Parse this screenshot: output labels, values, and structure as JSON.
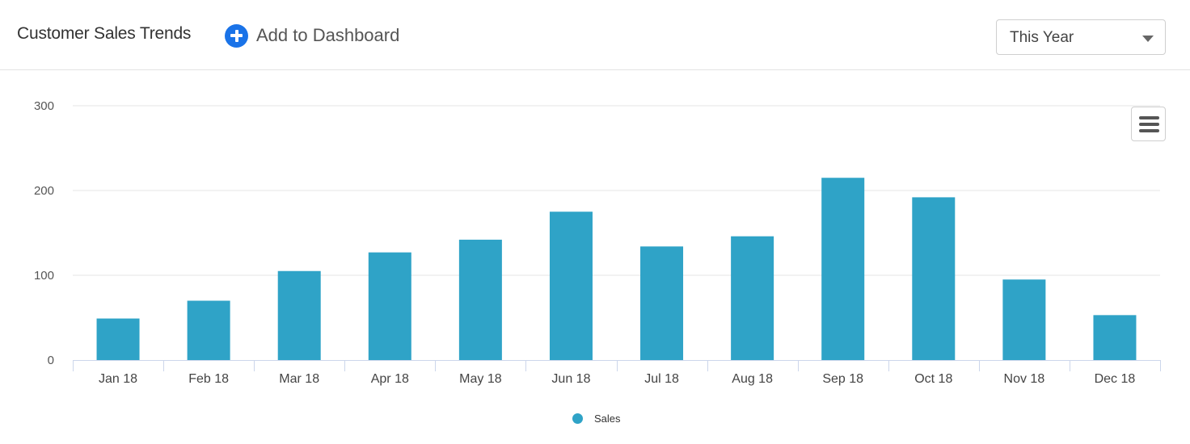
{
  "header": {
    "title": "Customer Sales Trends",
    "add_label": "Add to Dashboard"
  },
  "filter": {
    "selected": "This Year"
  },
  "colors": {
    "bar": "#2fa3c7",
    "accent": "#1a73e8"
  },
  "icons": {
    "add": "plus-circle-icon",
    "dropdown": "caret-down-icon",
    "menu": "hamburger-menu-icon"
  },
  "chart_data": {
    "type": "bar",
    "categories": [
      "Jan 18",
      "Feb 18",
      "Mar 18",
      "Apr 18",
      "May 18",
      "Jun 18",
      "Jul 18",
      "Aug 18",
      "Sep 18",
      "Oct 18",
      "Nov 18",
      "Dec 18"
    ],
    "series": [
      {
        "name": "Sales",
        "values": [
          49,
          70,
          105,
          127,
          142,
          175,
          134,
          146,
          215,
          192,
          95,
          53
        ]
      }
    ],
    "ylim": [
      0,
      300
    ],
    "yticks": [
      0,
      100,
      200,
      300
    ],
    "grid": true,
    "legend": "bottom-center"
  }
}
